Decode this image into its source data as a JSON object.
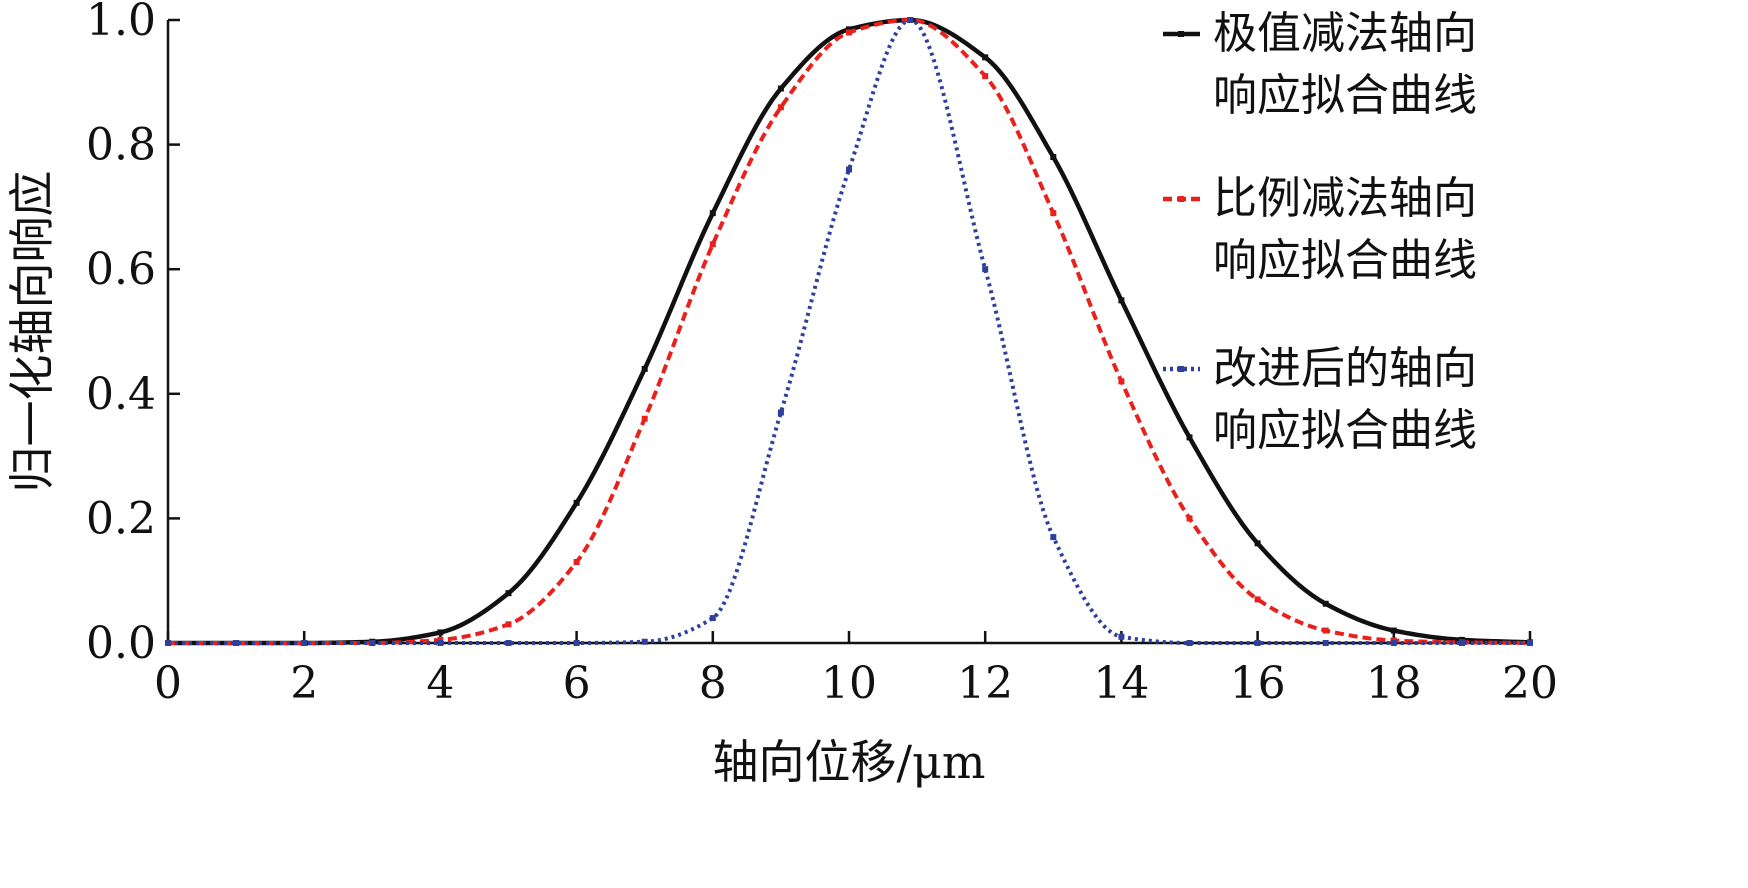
{
  "chart_data": {
    "type": "line",
    "title": "",
    "xlabel": "轴向位移/μm",
    "ylabel": "归一化轴向响应",
    "xlim": [
      0,
      20
    ],
    "ylim": [
      0.0,
      1.0
    ],
    "x_ticks": [
      0,
      2,
      4,
      6,
      8,
      10,
      12,
      14,
      16,
      18,
      20
    ],
    "x_tick_labels": [
      "0",
      "2",
      "4",
      "6",
      "8",
      "10",
      "12",
      "14",
      "16",
      "18",
      "20"
    ],
    "y_ticks": [
      0.0,
      0.2,
      0.4,
      0.6,
      0.8,
      1.0
    ],
    "y_tick_labels": [
      "0.0",
      "0.2",
      "0.4",
      "0.6",
      "0.8",
      "1.0"
    ],
    "grid": false,
    "legend_position": "top-right",
    "x": [
      0,
      1,
      2,
      3,
      4,
      5,
      6,
      7,
      8,
      9,
      10,
      10.9,
      12,
      13,
      14,
      15,
      16,
      17,
      18,
      19,
      20
    ],
    "series": [
      {
        "name_line1": "极值减法轴向",
        "name_line2": "响应拟合曲线",
        "color": "#111111",
        "dash": "solid",
        "values": [
          0.0,
          0.0,
          0.0,
          0.002,
          0.017,
          0.08,
          0.225,
          0.44,
          0.69,
          0.89,
          0.985,
          1.0,
          0.94,
          0.78,
          0.55,
          0.33,
          0.16,
          0.063,
          0.02,
          0.005,
          0.001
        ]
      },
      {
        "name_line1": "比例减法轴向",
        "name_line2": "响应拟合曲线",
        "color": "#e8211d",
        "dash": "dashed",
        "values": [
          0.0,
          0.0,
          0.0,
          0.0,
          0.005,
          0.03,
          0.13,
          0.36,
          0.64,
          0.86,
          0.98,
          1.0,
          0.91,
          0.69,
          0.42,
          0.2,
          0.07,
          0.02,
          0.004,
          0.001,
          0.0
        ]
      },
      {
        "name_line1": "改进后的轴向",
        "name_line2": "响应拟合曲线",
        "color": "#2e3f9c",
        "dash": "dotted",
        "values": [
          0.0,
          0.0,
          0.0,
          0.0,
          0.0,
          0.0,
          0.0,
          0.002,
          0.04,
          0.37,
          0.76,
          1.0,
          0.6,
          0.17,
          0.01,
          0.0,
          0.0,
          0.0,
          0.0,
          0.0,
          0.0
        ]
      }
    ]
  }
}
